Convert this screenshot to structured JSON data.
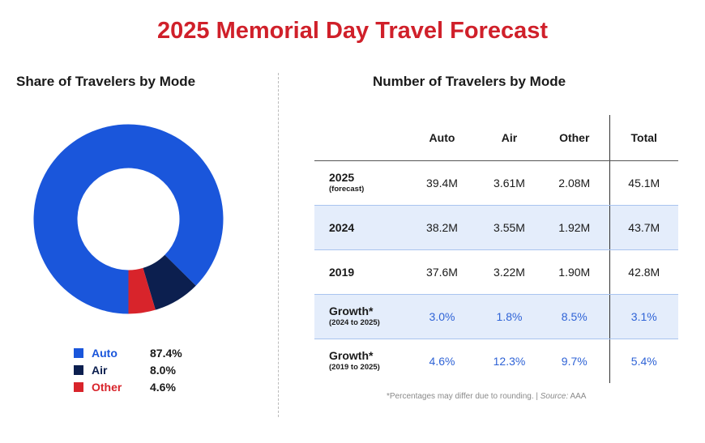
{
  "title": "2025 Memorial Day Travel Forecast",
  "left_title": "Share of Travelers by Mode",
  "right_title": "Number of Travelers by Mode",
  "colors": {
    "title": "#d0202a",
    "auto": "#1a56db",
    "air": "#0c1f4f",
    "other": "#d8242b",
    "pct_text": "#2f63d6"
  },
  "chart_data": {
    "type": "pie",
    "donut": true,
    "categories": [
      "Auto",
      "Air",
      "Other"
    ],
    "values": [
      87.4,
      8.0,
      4.6
    ],
    "value_labels": [
      "87.4%",
      "8.0%",
      "4.6%"
    ],
    "title": "Share of Travelers by Mode"
  },
  "table": {
    "headers": [
      "",
      "Auto",
      "Air",
      "Other",
      "Total"
    ],
    "rows": [
      {
        "label": "2025",
        "sublabel": "(forecast)",
        "values": [
          "39.4M",
          "3.61M",
          "2.08M",
          "45.1M"
        ],
        "shade": false,
        "pct": false
      },
      {
        "label": "2024",
        "sublabel": "",
        "values": [
          "38.2M",
          "3.55M",
          "1.92M",
          "43.7M"
        ],
        "shade": true,
        "pct": false
      },
      {
        "label": "2019",
        "sublabel": "",
        "values": [
          "37.6M",
          "3.22M",
          "1.90M",
          "42.8M"
        ],
        "shade": false,
        "pct": false
      },
      {
        "label": "Growth*",
        "sublabel": "(2024 to 2025)",
        "values": [
          "3.0%",
          "1.8%",
          "8.5%",
          "3.1%"
        ],
        "shade": true,
        "pct": true
      },
      {
        "label": "Growth*",
        "sublabel": "(2019 to 2025)",
        "values": [
          "4.6%",
          "12.3%",
          "9.7%",
          "5.4%"
        ],
        "shade": false,
        "pct": true
      }
    ]
  },
  "footnote": {
    "text": "*Percentages may differ due to rounding. | ",
    "source_label": "Source:",
    "source": " AAA"
  }
}
